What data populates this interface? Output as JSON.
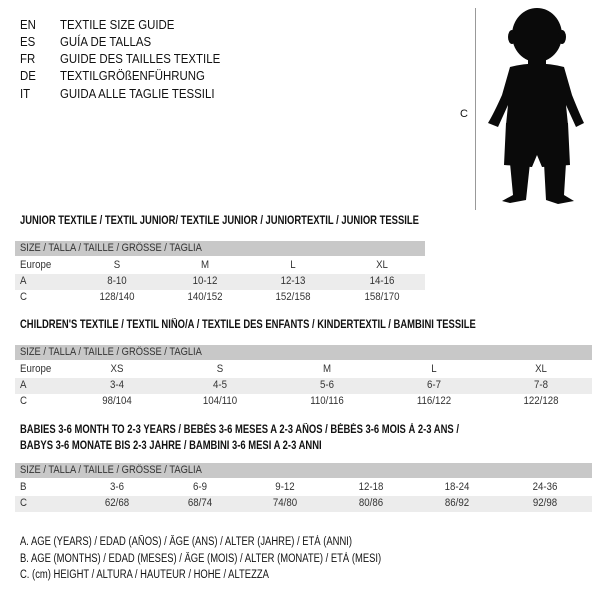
{
  "languages": [
    {
      "code": "EN",
      "title": "TEXTILE SIZE GUIDE"
    },
    {
      "code": "ES",
      "title": "GUÍA DE TALLAS"
    },
    {
      "code": "FR",
      "title": "GUIDE DES TAILLES TEXTILE"
    },
    {
      "code": "DE",
      "title": "TEXTILGRÖßENFÜHRUNG"
    },
    {
      "code": "IT",
      "title": "GUIDA ALLE TAGLIE TESSILI"
    }
  ],
  "figure": {
    "label": "C",
    "icon": "child-silhouette"
  },
  "tables": [
    {
      "heading": "JUNIOR TEXTILE / TEXTIL JUNIOR/ TEXTILE JUNIOR / JUNIORTEXTIL / JUNIOR TESSILE",
      "header": "SIZE / TALLA / TAILLE / GRÖSSE / TAGLIA",
      "rows": [
        {
          "label": "Europe",
          "cells": [
            "S",
            "M",
            "L",
            "XL"
          ]
        },
        {
          "label": "A",
          "cells": [
            "8-10",
            "10-12",
            "12-13",
            "14-16"
          ]
        },
        {
          "label": "C",
          "cells": [
            "128/140",
            "140/152",
            "152/158",
            "158/170"
          ]
        }
      ]
    },
    {
      "heading": "CHILDREN'S TEXTILE / TEXTIL NIÑO/A / TEXTILE DES ENFANTS / KINDERTEXTIL / BAMBINI TESSILE",
      "header": "SIZE / TALLA / TAILLE / GRÖSSE / TAGLIA",
      "rows": [
        {
          "label": "Europe",
          "cells": [
            "XS",
            "S",
            "M",
            "L",
            "XL"
          ]
        },
        {
          "label": "A",
          "cells": [
            "3-4",
            "4-5",
            "5-6",
            "6-7",
            "7-8"
          ]
        },
        {
          "label": "C",
          "cells": [
            "98/104",
            "104/110",
            "110/116",
            "116/122",
            "122/128"
          ]
        }
      ]
    },
    {
      "heading": "BABIES 3-6 MONTH TO 2-3 YEARS / BEBÉS 3-6 MESES A 2-3 AÑOS / BÉBÉS 3-6 MOIS À 2-3 ANS /",
      "heading2": "BABYS 3-6 MONATE BIS 2-3 JAHRE / BAMBINI 3-6 MESI A 2-3 ANNI",
      "header": "SIZE / TALLA / TAILLE / GRÖSSE / TAGLIA",
      "rows": [
        {
          "label": "B",
          "cells": [
            "3-6",
            "6-9",
            "9-12",
            "12-18",
            "18-24",
            "24-36"
          ]
        },
        {
          "label": "C",
          "cells": [
            "62/68",
            "68/74",
            "74/80",
            "80/86",
            "86/92",
            "92/98"
          ]
        }
      ]
    }
  ],
  "legend": [
    "A. AGE (YEARS) / EDAD (AÑOS) / ÂGE (ANS) / ALTER (JAHRE) / ETÀ (ANNI)",
    "B. AGE (MONTHS) / EDAD (MESES) / ÂGE (MOIS) / ALTER (MONATE) / ETÀ (MESI)",
    "C. (cm) HEIGHT / ALTURA / HAUTEUR / HÖHE / ALTEZZA"
  ]
}
